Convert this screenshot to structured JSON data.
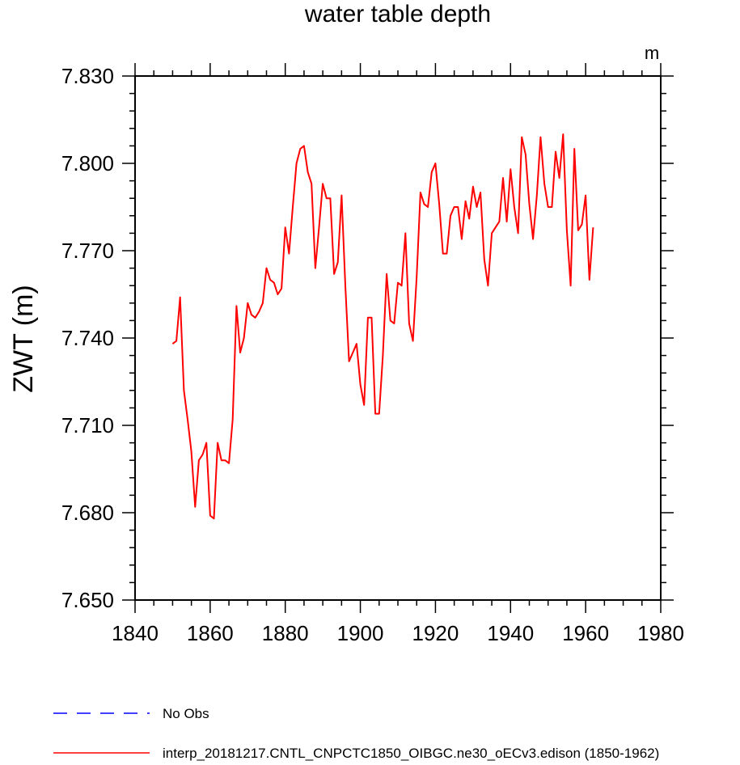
{
  "chart_data": {
    "type": "line",
    "title": "water table depth",
    "units": "m",
    "ylabel": "ZWT  (m)",
    "xlabel": "",
    "xlim": [
      1840,
      1980
    ],
    "ylim": [
      7.65,
      7.83
    ],
    "xticks": [
      1840,
      1860,
      1880,
      1900,
      1920,
      1940,
      1960,
      1980
    ],
    "xtick_labels": [
      "1840",
      "1860",
      "1880",
      "1900",
      "1920",
      "1940",
      "1960",
      "1980"
    ],
    "yticks": [
      7.65,
      7.68,
      7.71,
      7.74,
      7.77,
      7.8,
      7.83
    ],
    "ytick_labels": [
      "7.650",
      "7.680",
      "7.710",
      "7.740",
      "7.770",
      "7.800",
      "7.830"
    ],
    "legend": [
      {
        "label": "No Obs",
        "color": "#0000ff",
        "style": "dashed"
      },
      {
        "label": "interp_20181217.CNTL_CNPCTC1850_OIBGC.ne30_oECv3.edison (1850-1962)",
        "color": "#ff0000",
        "style": "solid"
      }
    ],
    "legend_position": "bottom",
    "series": [
      {
        "name": "interp_20181217.CNTL_CNPCTC1850_OIBGC.ne30_oECv3.edison (1850-1962)",
        "color": "#ff0000",
        "x": [
          1850,
          1851,
          1852,
          1853,
          1854,
          1855,
          1856,
          1857,
          1858,
          1859,
          1860,
          1861,
          1862,
          1863,
          1864,
          1865,
          1866,
          1867,
          1868,
          1869,
          1870,
          1871,
          1872,
          1873,
          1874,
          1875,
          1876,
          1877,
          1878,
          1879,
          1880,
          1881,
          1882,
          1883,
          1884,
          1885,
          1886,
          1887,
          1888,
          1889,
          1890,
          1891,
          1892,
          1893,
          1894,
          1895,
          1896,
          1897,
          1898,
          1899,
          1900,
          1901,
          1902,
          1903,
          1904,
          1905,
          1906,
          1907,
          1908,
          1909,
          1910,
          1911,
          1912,
          1913,
          1914,
          1915,
          1916,
          1917,
          1918,
          1919,
          1920,
          1921,
          1922,
          1923,
          1924,
          1925,
          1926,
          1927,
          1928,
          1929,
          1930,
          1931,
          1932,
          1933,
          1934,
          1935,
          1936,
          1937,
          1938,
          1939,
          1940,
          1941,
          1942,
          1943,
          1944,
          1945,
          1946,
          1947,
          1948,
          1949,
          1950,
          1951,
          1952,
          1953,
          1954,
          1955,
          1956,
          1957,
          1958,
          1959,
          1960,
          1961,
          1962
        ],
        "y": [
          7.738,
          7.739,
          7.754,
          7.722,
          7.712,
          7.701,
          7.682,
          7.698,
          7.7,
          7.704,
          7.679,
          7.678,
          7.704,
          7.698,
          7.698,
          7.697,
          7.712,
          7.751,
          7.735,
          7.74,
          7.752,
          7.748,
          7.747,
          7.749,
          7.752,
          7.764,
          7.76,
          7.759,
          7.755,
          7.757,
          7.778,
          7.769,
          7.785,
          7.8,
          7.805,
          7.806,
          7.797,
          7.793,
          7.764,
          7.778,
          7.793,
          7.788,
          7.788,
          7.762,
          7.766,
          7.789,
          7.758,
          7.732,
          7.735,
          7.738,
          7.724,
          7.717,
          7.747,
          7.747,
          7.714,
          7.714,
          7.734,
          7.762,
          7.746,
          7.745,
          7.759,
          7.758,
          7.776,
          7.745,
          7.739,
          7.761,
          7.79,
          7.786,
          7.785,
          7.797,
          7.8,
          7.786,
          7.769,
          7.769,
          7.782,
          7.785,
          7.785,
          7.774,
          7.787,
          7.781,
          7.792,
          7.785,
          7.79,
          7.767,
          7.758,
          7.776,
          7.778,
          7.78,
          7.795,
          7.78,
          7.798,
          7.785,
          7.776,
          7.809,
          7.803,
          7.786,
          7.774,
          7.789,
          7.809,
          7.793,
          7.785,
          7.785,
          7.804,
          7.795,
          7.81,
          7.777,
          7.758,
          7.805,
          7.777,
          7.779,
          7.789,
          7.76,
          7.778
        ]
      }
    ]
  }
}
